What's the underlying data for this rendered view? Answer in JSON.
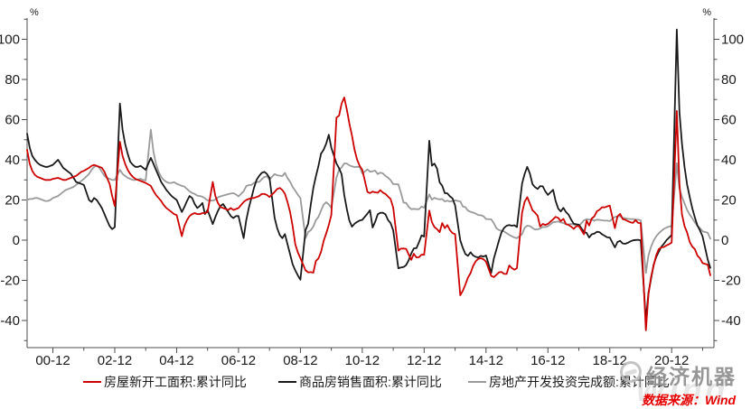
{
  "chart": {
    "left_unit_label": "%",
    "right_unit_label": "%",
    "y_major_ticks": [
      -40,
      -20,
      0,
      20,
      40,
      60,
      80,
      100
    ],
    "y_minor_ticks": [
      -50,
      -30,
      -10,
      10,
      30,
      50,
      70,
      90,
      110
    ],
    "x_tick_labels": [
      "00-12",
      "02-12",
      "04-12",
      "06-12",
      "08-12",
      "10-12",
      "12-12",
      "14-12",
      "16-12",
      "18-12",
      "20-12"
    ],
    "axis_color": "#4d4d4d",
    "label_color": "#1a1a1a",
    "watermark_brand": "经济机器",
    "watermark_wind": "Wind",
    "source_note": "数据来源：Wind"
  },
  "chart_data": {
    "type": "line",
    "title": "",
    "xlabel": "",
    "ylabel": "%",
    "ylim": [
      -52,
      110.5
    ],
    "grid": false,
    "legend_position": "bottom",
    "x_format": "YY-MM monthly cumulative data, Feb–Dec each year (Jan merged with Feb), 2000-02 through 2022-03",
    "x_tick_months": "December of every even year",
    "series": [
      {
        "name": "房屋新开工面积:累计同比",
        "color": "#cc0000",
        "values_by_year": {
          "2000": [
            45,
            38,
            34.5,
            32.5,
            31.5,
            31,
            30.5,
            30,
            30,
            30,
            30.5
          ],
          "2001": [
            31,
            30.5,
            30,
            30,
            30.5,
            31,
            31.5,
            32,
            33,
            34,
            34.5
          ],
          "2002": [
            36,
            37,
            37.5,
            37,
            36.5,
            36,
            34,
            31,
            28,
            22,
            17
          ],
          "2003": [
            49,
            42,
            38,
            35,
            33,
            31.5,
            30.5,
            30,
            29.5,
            29,
            28.5
          ],
          "2004": [
            27,
            24.5,
            22.5,
            21,
            19.5,
            17.5,
            16,
            15,
            14,
            13,
            12.5
          ],
          "2005": [
            2,
            7,
            10,
            12,
            13,
            13.5,
            13,
            13,
            13.5,
            13.5,
            14
          ],
          "2006": [
            29,
            22,
            18.5,
            16.5,
            16,
            15.5,
            15,
            16,
            15,
            15.5,
            16
          ],
          "2007": [
            19,
            20,
            20.5,
            21,
            21,
            21.5,
            22,
            23,
            23,
            22.5,
            21.5
          ],
          "2008": [
            24,
            25.5,
            26,
            25,
            23,
            19,
            14,
            7,
            -2,
            -6,
            -9
          ],
          "2009": [
            -15,
            -16,
            -15.9,
            -16.2,
            -10.4,
            -9.1,
            -5.9,
            -0.4,
            3.3,
            7.5,
            12.5
          ],
          "2010": [
            61,
            62,
            68,
            71,
            65,
            58,
            52,
            45,
            40,
            37,
            35
          ],
          "2011": [
            24,
            23.4,
            24.2,
            23.8,
            23.6,
            24.9,
            23.7,
            23,
            21.7,
            20.5,
            16.2
          ],
          "2012": [
            -5.2,
            -4.2,
            -4.2,
            -4.3,
            -7.1,
            -9.8,
            -6.8,
            -8.6,
            -8.5,
            -7.2,
            -7.3
          ],
          "2013": [
            14.7,
            9,
            6.5,
            5.5,
            4,
            8.5,
            6,
            7.5,
            5,
            3.5,
            3
          ],
          "2014": [
            -27.4,
            -25.2,
            -22.1,
            -18.6,
            -16.4,
            -12.8,
            -10.5,
            -9.3,
            -9,
            -9.5,
            -10.7
          ],
          "2015": [
            -17.7,
            -18.4,
            -17.3,
            -16,
            -15.8,
            -16.8,
            -16.8,
            -12.6,
            -13.9,
            -14.7,
            -14
          ],
          "2016": [
            13.7,
            19.2,
            21.4,
            18.3,
            14.9,
            13.7,
            12.2,
            6.8,
            8.1,
            7.6,
            8.1
          ],
          "2017": [
            10.4,
            11.6,
            11.1,
            9.5,
            10.6,
            8,
            7.6,
            6.8,
            5.6,
            6.9,
            7
          ],
          "2018": [
            2.9,
            9.7,
            7.3,
            10.8,
            11.8,
            14.4,
            15.1,
            16.4,
            16.3,
            16.8,
            17.2
          ],
          "2019": [
            6,
            11.9,
            13.1,
            10.5,
            10.1,
            9.5,
            8.9,
            8.6,
            10,
            8.6,
            8.5
          ],
          "2020": [
            -44.9,
            -27.2,
            -18.4,
            -12.8,
            -7.6,
            -4.5,
            -3.6,
            -3.4,
            -2.6,
            -2,
            -1.2
          ],
          "2021": [
            64.3,
            28.2,
            12.9,
            6.9,
            3.8,
            -0.9,
            -3.2,
            -4.5,
            -7.7,
            -9.1,
            -11.4
          ],
          "2022": [
            -12.2,
            -17.5
          ]
        }
      },
      {
        "name": "商品房销售面积:累计同比",
        "color": "#1a1a1a",
        "values_by_year": {
          "2000": [
            53,
            46,
            42,
            40,
            38.5,
            37.5,
            37,
            36.5,
            36.5,
            37,
            37.5
          ],
          "2001": [
            40,
            38,
            36,
            35,
            34,
            33,
            31,
            29,
            28.5,
            28,
            27.5
          ],
          "2002": [
            20,
            19,
            21,
            20,
            18,
            16,
            13,
            10,
            7,
            5.5,
            6.5
          ],
          "2003": [
            68,
            55,
            48,
            43,
            39,
            37.5,
            36.5,
            36.5,
            37,
            36,
            35
          ],
          "2004": [
            41,
            38,
            35,
            32,
            29,
            27,
            25,
            23.5,
            22,
            21,
            20
          ],
          "2005": [
            14,
            16.5,
            19.5,
            22,
            21,
            18,
            16,
            17,
            18.5,
            13,
            15
          ],
          "2006": [
            8,
            11.5,
            14.5,
            17,
            18,
            16,
            14,
            12,
            11,
            12,
            12
          ],
          "2007": [
            1,
            10,
            16,
            21,
            26,
            30,
            32,
            33.5,
            34,
            33,
            31
          ],
          "2008": [
            11,
            6,
            2.5,
            1,
            3,
            -2,
            -7,
            -12,
            -15,
            -17.5,
            -19.7
          ],
          "2009": [
            5,
            8.2,
            17.5,
            26,
            31.7,
            37,
            43,
            45,
            48,
            52.5,
            46
          ],
          "2010": [
            38.2,
            35.8,
            32.8,
            22.5,
            15.4,
            9.7,
            6.7,
            8.2,
            9.1,
            9.8,
            10.1
          ],
          "2011": [
            13.2,
            14.9,
            6.3,
            9.1,
            12.9,
            13.6,
            13.6,
            12.9,
            10,
            8.5,
            4.9
          ],
          "2012": [
            -14,
            -13.6,
            -13.4,
            -12.4,
            -10,
            -6.6,
            -4.1,
            -4,
            -1.1,
            2.4,
            1.8
          ],
          "2013": [
            49.5,
            37.1,
            38.1,
            35.6,
            28.7,
            27.1,
            23.4,
            23.3,
            21.8,
            20.8,
            17.3
          ],
          "2014": [
            -0.1,
            -3.8,
            -6.9,
            -7.8,
            -6,
            -7.6,
            -8.3,
            -8.6,
            -7.8,
            -8.2,
            -7.6
          ],
          "2015": [
            -16.3,
            -9.2,
            -4.8,
            -0.2,
            3.9,
            6.1,
            7.2,
            7.5,
            7.2,
            7.4,
            6.5
          ],
          "2016": [
            28.2,
            33.1,
            36.5,
            33.2,
            27.9,
            26.4,
            25.5,
            26.9,
            26.8,
            24.3,
            22.5
          ],
          "2017": [
            25.1,
            19.5,
            15.7,
            14.3,
            16.1,
            14,
            12.7,
            10.3,
            8.2,
            7.9,
            7.7
          ],
          "2018": [
            4.1,
            3.6,
            1.3,
            2.9,
            3.3,
            4.2,
            4,
            2.9,
            2.2,
            1.4,
            1.3
          ],
          "2019": [
            -3.6,
            -0.9,
            -0.3,
            -1.6,
            -1.8,
            -1.3,
            -0.6,
            -0.1,
            0.1,
            0.2,
            -0.1
          ],
          "2020": [
            -39.9,
            -26.3,
            -19.3,
            -12.3,
            -8.4,
            -5.8,
            -3.3,
            -1.8,
            0,
            1.3,
            2.6
          ],
          "2021": [
            104.9,
            63.8,
            48.1,
            36.3,
            27.7,
            21.5,
            15.9,
            11.3,
            7.3,
            4.8,
            1.9
          ],
          "2022": [
            -9.6,
            -13.8
          ]
        }
      },
      {
        "name": "房地产开发投资完成额:累计同比",
        "color": "#9a9a9a",
        "values_by_year": {
          "2000": [
            20,
            20.5,
            20.5,
            21,
            21,
            20.5,
            20,
            19.5,
            19.5,
            20,
            21
          ],
          "2001": [
            22,
            23,
            24,
            25,
            25.5,
            26,
            26.5,
            27.5,
            28.5,
            29.5,
            30.5
          ],
          "2002": [
            33,
            35,
            36.5,
            37,
            36,
            34,
            32,
            31,
            30.5,
            30,
            30
          ],
          "2003": [
            35,
            33,
            32,
            31,
            30.5,
            30,
            30,
            30.3,
            30.5,
            30,
            29.7
          ],
          "2004": [
            55,
            44,
            38,
            34,
            31.5,
            30,
            29,
            28.5,
            28.5,
            28.9,
            28.1
          ],
          "2005": [
            27,
            26.7,
            25.5,
            24.3,
            23.5,
            23,
            22.2,
            22,
            21.6,
            20.8,
            19.8
          ],
          "2006": [
            19.7,
            20.2,
            21.3,
            21.8,
            22.2,
            22.5,
            22.9,
            23.2,
            23.4,
            22.8,
            21.8
          ],
          "2007": [
            24.3,
            26.9,
            27.4,
            27.5,
            28.5,
            29,
            29,
            30.3,
            31.4,
            31.8,
            30.2
          ],
          "2008": [
            32.9,
            32.3,
            32.1,
            31.9,
            33.5,
            30.9,
            29.1,
            26.5,
            24.6,
            22.7,
            20.9
          ],
          "2009": [
            1,
            4.1,
            4.9,
            6.8,
            9.9,
            11.6,
            14.7,
            17.7,
            18.9,
            17.8,
            16.1
          ],
          "2010": [
            31.1,
            35.1,
            36.2,
            38.2,
            38.1,
            37.2,
            36.7,
            36.4,
            36.5,
            36.5,
            33.2
          ],
          "2011": [
            35.2,
            34.1,
            34.3,
            34.6,
            32.9,
            33.6,
            33.2,
            32,
            31.1,
            29.9,
            27.9
          ],
          "2012": [
            27.8,
            23.5,
            18.7,
            18.5,
            16.6,
            15.4,
            15.6,
            15.4,
            15.4,
            16.7,
            16.2
          ],
          "2013": [
            22.8,
            20.2,
            21.1,
            20.6,
            20.3,
            20.5,
            19.3,
            19.7,
            19.2,
            19.5,
            19.8
          ],
          "2014": [
            19.3,
            16.8,
            16.4,
            14.7,
            14.1,
            13.7,
            13.2,
            12.5,
            12.4,
            11.9,
            10.5
          ],
          "2015": [
            10.4,
            8.5,
            6,
            5.1,
            4.6,
            4.3,
            3.5,
            2.6,
            2,
            1.3,
            1
          ],
          "2016": [
            3,
            6.2,
            7.2,
            7,
            6.1,
            5.3,
            5.4,
            5.8,
            6.6,
            6.5,
            6.9
          ],
          "2017": [
            8.9,
            9.1,
            9.3,
            8.8,
            8.5,
            7.9,
            7.8,
            8.1,
            7.8,
            7.5,
            7
          ],
          "2018": [
            9.9,
            10.4,
            10.3,
            10.2,
            9.7,
            10.2,
            10.1,
            9.9,
            9.7,
            9.7,
            9.5
          ],
          "2019": [
            11.6,
            11.8,
            11.9,
            11.2,
            10.9,
            10.6,
            10.5,
            10.5,
            10.3,
            10.2,
            9.9
          ],
          "2020": [
            -16.3,
            -7.7,
            -3.3,
            -0.3,
            1.9,
            3.4,
            4.6,
            5.6,
            6.3,
            6.8,
            7
          ],
          "2021": [
            38.3,
            25.6,
            21.6,
            18.3,
            15,
            12.7,
            10.9,
            8.8,
            7.2,
            6,
            4.4
          ],
          "2022": [
            3.7,
            0.7
          ]
        }
      }
    ]
  }
}
